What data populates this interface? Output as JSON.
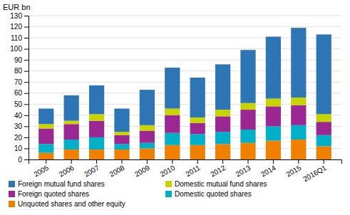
{
  "chart_data": {
    "type": "bar",
    "stacked": true,
    "categories": [
      "2005",
      "2006",
      "2007",
      "2008",
      "2009",
      "2010",
      "2011",
      "2012",
      "2013",
      "2014",
      "2015",
      "2016Q1"
    ],
    "series": [
      {
        "name": "Unquoted shares and other equity",
        "color": "#f08000",
        "values": [
          6,
          9,
          9,
          9,
          10,
          13,
          13,
          14,
          15,
          17,
          18,
          12
        ]
      },
      {
        "name": "Domestic quoted shares",
        "color": "#00b0c8",
        "values": [
          8,
          9,
          11,
          5,
          5,
          11,
          10,
          11,
          12,
          13,
          13,
          10
        ]
      },
      {
        "name": "Foreign quoted shares",
        "color": "#9b2793",
        "values": [
          14,
          14,
          15,
          8,
          11,
          16,
          10,
          14,
          18,
          18,
          18,
          12
        ]
      },
      {
        "name": "Domestic mutual fund shares",
        "color": "#c8d400",
        "values": [
          4,
          3,
          6,
          3,
          5,
          6,
          5,
          6,
          6,
          7,
          7,
          7
        ]
      },
      {
        "name": "Foreign mutual fund shares",
        "color": "#2e75b6",
        "values": [
          14,
          23,
          26,
          21,
          32,
          37,
          36,
          41,
          48,
          56,
          63,
          72
        ]
      }
    ],
    "ylabel": "EUR bn",
    "ylim": [
      0,
      130
    ],
    "yticks": [
      0,
      10,
      20,
      30,
      40,
      50,
      60,
      70,
      80,
      90,
      100,
      110,
      120,
      130
    ],
    "grid": true,
    "legend": "bottom"
  }
}
